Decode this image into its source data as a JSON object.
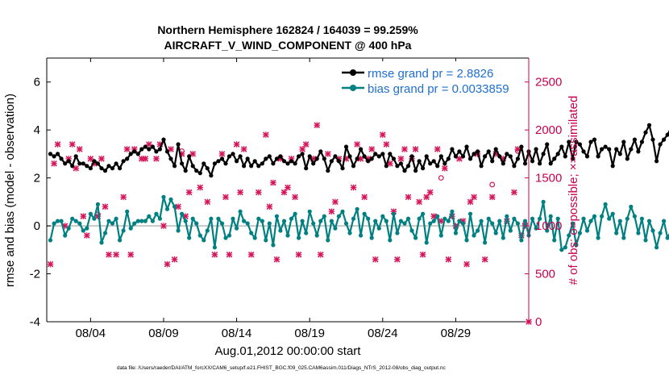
{
  "chart_data": {
    "type": "line",
    "title": "Northern Hemisphere 162824 / 164039 = 99.259%",
    "subtitle": "AIRCRAFT_V_WIND_COMPONENT @ 400 hPa",
    "xlabel": "Aug.01,2012 00:00:00 start",
    "ylabel": "rmse and bias (model - observation)",
    "y2label": "# of obs: o=possible; ×=assimilated",
    "footnote": "data file: /Users/raeder/DAI/ATM_forcXX/CAM6_setup/f.e21.FHIST_BGC.f09_025.CAM6assim.011/Diags_NTrS_2012-08/obs_diag_output.nc",
    "xlim": [
      0,
      33
    ],
    "ylim": [
      -4,
      7
    ],
    "y2lim": [
      0,
      2750
    ],
    "x_ticks": [
      {
        "value": 3,
        "label": "08/04"
      },
      {
        "value": 8,
        "label": "08/09"
      },
      {
        "value": 13,
        "label": "08/14"
      },
      {
        "value": 18,
        "label": "08/19"
      },
      {
        "value": 23,
        "label": "08/24"
      },
      {
        "value": 28,
        "label": "08/29"
      }
    ],
    "y_ticks": [
      {
        "value": -4,
        "label": "-4"
      },
      {
        "value": -2,
        "label": "-2"
      },
      {
        "value": 0,
        "label": "0"
      },
      {
        "value": 2,
        "label": "2"
      },
      {
        "value": 4,
        "label": "4"
      },
      {
        "value": 6,
        "label": "6"
      }
    ],
    "y2_ticks": [
      {
        "value": 0,
        "label": "0"
      },
      {
        "value": 500,
        "label": "500"
      },
      {
        "value": 1000,
        "label": "1000"
      },
      {
        "value": 1500,
        "label": "1500"
      },
      {
        "value": 2000,
        "label": "2000"
      },
      {
        "value": 2500,
        "label": "2500"
      }
    ],
    "x_start": 0.25,
    "x_step": 0.25,
    "series": [
      {
        "name": "rmse grand pr = 2.8826",
        "color": "#000000",
        "values": [
          3.0,
          2.9,
          3.0,
          2.8,
          2.6,
          2.7,
          2.5,
          2.9,
          2.6,
          2.6,
          2.5,
          2.4,
          2.7,
          2.6,
          2.4,
          2.3,
          2.5,
          2.4,
          2.6,
          2.4,
          2.7,
          2.8,
          3.0,
          3.1,
          3.0,
          3.2,
          3.3,
          3.2,
          3.3,
          3.1,
          3.2,
          3.6,
          3.1,
          2.8,
          2.5,
          3.4,
          2.6,
          2.3,
          2.9,
          2.5,
          2.3,
          2.2,
          2.6,
          2.4,
          2.1,
          2.6,
          2.7,
          2.8,
          2.6,
          2.9,
          3.0,
          2.7,
          2.9,
          2.5,
          2.8,
          2.5,
          2.7,
          2.5,
          2.6,
          2.8,
          2.9,
          2.6,
          2.8,
          2.9,
          2.7,
          2.6,
          2.7,
          2.6,
          2.9,
          3.0,
          2.4,
          2.9,
          2.6,
          2.8,
          3.1,
          2.8,
          2.3,
          2.7,
          2.9,
          2.7,
          2.4,
          3.3,
          2.9,
          2.5,
          2.8,
          3.2,
          2.9,
          2.7,
          2.8,
          3.0,
          2.9,
          3.0,
          2.5,
          3.0,
          2.8,
          2.5,
          2.6,
          2.3,
          2.5,
          2.9,
          2.3,
          2.7,
          2.4,
          2.9,
          2.6,
          2.7,
          2.5,
          2.9,
          2.6,
          2.8,
          3.2,
          2.9,
          3.1,
          2.9,
          3.3,
          2.8,
          3.0,
          3.1,
          2.5,
          2.9,
          3.1,
          2.7,
          3.2,
          2.9,
          2.6,
          3.0,
          2.9,
          2.5,
          2.8,
          3.3,
          2.6,
          3.1,
          2.7,
          3.2,
          2.6,
          3.0,
          3.4,
          2.6,
          2.8,
          3.0,
          3.3,
          2.9,
          3.5,
          2.8,
          3.5,
          3.4,
          3.1,
          2.9,
          3.5,
          3.6,
          2.9,
          3.2,
          3.3,
          3.2,
          2.5,
          3.2,
          3.0,
          3.5,
          2.8,
          3.2,
          3.6,
          3.1,
          3.5,
          3.9,
          4.2,
          3.6,
          2.7,
          3.4,
          3.6,
          3.8,
          4.1,
          4.4
        ]
      },
      {
        "name": "bias grand pr = 0.0033859",
        "color": "#008080",
        "values": [
          -0.6,
          0.1,
          0.2,
          0.2,
          -0.4,
          -0.1,
          0.3,
          0.2,
          0.1,
          -0.2,
          -0.1,
          0.5,
          0.3,
          0.9,
          -0.7,
          -0.3,
          0.2,
          0.1,
          0.3,
          -0.6,
          -0.2,
          0.6,
          -0.1,
          0.1,
          0.2,
          0.2,
          0.2,
          0.4,
          0.2,
          0.5,
          0.3,
          1.2,
          0.7,
          1.1,
          0.8,
          -0.2,
          0.5,
          0.2,
          -0.5,
          0.3,
          0.1,
          -0.4,
          -0.6,
          -0.2,
          0.3,
          -0.9,
          0.3,
          0.1,
          -0.5,
          -0.4,
          0.3,
          -0.1,
          0.6,
          0.2,
          0.1,
          -0.3,
          -0.5,
          0.3,
          0.2,
          -0.6,
          0.1,
          -0.8,
          0.4,
          -0.2,
          0.2,
          -0.4,
          0.3,
          0.5,
          -0.5,
          0.2,
          -0.3,
          0.6,
          0.1,
          -0.4,
          0.2,
          0.4,
          -0.6,
          0.2,
          -0.1,
          0.4,
          0.6,
          0.1,
          -0.3,
          0.3,
          0.7,
          -0.4,
          0.5,
          0.3,
          -0.5,
          0.2,
          -0.1,
          0.4,
          0.2,
          -0.6,
          0.5,
          -0.3,
          0.2,
          0.1,
          0.3,
          -0.2,
          -0.5,
          0.3,
          0.5,
          -0.7,
          0.1,
          0.2,
          0.4,
          -0.4,
          0.3,
          0.2,
          0.6,
          -0.3,
          0.2,
          0.1,
          -0.6,
          0.5,
          -0.4,
          -0.2,
          0.2,
          -0.7,
          0.3,
          0.1,
          -0.3,
          0.2,
          -0.5,
          0.4,
          -0.2,
          0.3,
          0.1,
          -0.6,
          0.2,
          -0.4,
          0.3,
          -0.1,
          0.3,
          1.0,
          -0.2,
          0.4,
          -0.6,
          0.3,
          -1.0,
          -0.9,
          -0.4,
          0.1,
          -0.8,
          -0.3,
          0.3,
          -0.2,
          0.2,
          0.4,
          -0.5,
          0.4,
          0.9,
          0.3,
          0.5,
          -0.3,
          0.2,
          -0.5,
          0.3,
          0.8,
          0.4,
          -0.3,
          0.3,
          -0.6,
          0.2,
          -0.2,
          -0.9,
          -0.3,
          0.2,
          -0.5,
          -0.2,
          0.3,
          0.1
        ]
      }
    ],
    "obs_assimilated": [
      {
        "x": 0.25,
        "y": 600
      },
      {
        "x": 0.5,
        "y": 1650
      },
      {
        "x": 0.75,
        "y": 1850
      },
      {
        "x": 1.25,
        "y": 1000
      },
      {
        "x": 1.5,
        "y": 1700
      },
      {
        "x": 1.75,
        "y": 1850
      },
      {
        "x": 2.0,
        "y": 1600
      },
      {
        "x": 2.25,
        "y": 1800
      },
      {
        "x": 2.5,
        "y": 1100
      },
      {
        "x": 2.75,
        "y": 900
      },
      {
        "x": 3.0,
        "y": 1700
      },
      {
        "x": 3.25,
        "y": 1650
      },
      {
        "x": 3.5,
        "y": 1100
      },
      {
        "x": 3.75,
        "y": 1700
      },
      {
        "x": 4.0,
        "y": 1200
      },
      {
        "x": 4.25,
        "y": 700
      },
      {
        "x": 4.75,
        "y": 700
      },
      {
        "x": 5.25,
        "y": 1300
      },
      {
        "x": 5.5,
        "y": 1800
      },
      {
        "x": 5.75,
        "y": 700
      },
      {
        "x": 6.0,
        "y": 1800
      },
      {
        "x": 6.5,
        "y": 1700
      },
      {
        "x": 6.75,
        "y": 1700
      },
      {
        "x": 7.0,
        "y": 1850
      },
      {
        "x": 7.5,
        "y": 1700
      },
      {
        "x": 7.75,
        "y": 1850
      },
      {
        "x": 8.0,
        "y": 1000
      },
      {
        "x": 8.25,
        "y": 600
      },
      {
        "x": 8.5,
        "y": 1800
      },
      {
        "x": 8.75,
        "y": 650
      },
      {
        "x": 9.0,
        "y": 1200
      },
      {
        "x": 9.25,
        "y": 1750
      },
      {
        "x": 9.5,
        "y": 1100
      },
      {
        "x": 9.75,
        "y": 1350
      },
      {
        "x": 10.0,
        "y": 1750
      },
      {
        "x": 10.5,
        "y": 1400
      },
      {
        "x": 11.0,
        "y": 1250
      },
      {
        "x": 11.5,
        "y": 700
      },
      {
        "x": 12.0,
        "y": 1750
      },
      {
        "x": 12.25,
        "y": 1300
      },
      {
        "x": 12.5,
        "y": 700
      },
      {
        "x": 13.0,
        "y": 1850
      },
      {
        "x": 13.25,
        "y": 1350
      },
      {
        "x": 13.5,
        "y": 1800
      },
      {
        "x": 14.0,
        "y": 700
      },
      {
        "x": 14.5,
        "y": 1350
      },
      {
        "x": 15.0,
        "y": 1950
      },
      {
        "x": 15.25,
        "y": 1200
      },
      {
        "x": 15.5,
        "y": 1450
      },
      {
        "x": 15.75,
        "y": 650
      },
      {
        "x": 16.0,
        "y": 1700
      },
      {
        "x": 16.25,
        "y": 1350
      },
      {
        "x": 16.5,
        "y": 1400
      },
      {
        "x": 16.75,
        "y": 1700
      },
      {
        "x": 17.0,
        "y": 1300
      },
      {
        "x": 17.25,
        "y": 700
      },
      {
        "x": 17.5,
        "y": 1800
      },
      {
        "x": 17.75,
        "y": 1850
      },
      {
        "x": 18.25,
        "y": 1700
      },
      {
        "x": 18.5,
        "y": 2050
      },
      {
        "x": 18.75,
        "y": 700
      },
      {
        "x": 19.25,
        "y": 1750
      },
      {
        "x": 19.5,
        "y": 1150
      },
      {
        "x": 19.75,
        "y": 1250
      },
      {
        "x": 20.0,
        "y": 1700
      },
      {
        "x": 20.5,
        "y": 1700
      },
      {
        "x": 21.0,
        "y": 1400
      },
      {
        "x": 21.25,
        "y": 1850
      },
      {
        "x": 21.5,
        "y": 1700
      },
      {
        "x": 21.75,
        "y": 1300
      },
      {
        "x": 22.0,
        "y": 1700
      },
      {
        "x": 22.25,
        "y": 1800
      },
      {
        "x": 22.5,
        "y": 650
      },
      {
        "x": 23.0,
        "y": 1950
      },
      {
        "x": 23.25,
        "y": 1850
      },
      {
        "x": 23.5,
        "y": 1650
      },
      {
        "x": 23.75,
        "y": 1150
      },
      {
        "x": 24.0,
        "y": 650
      },
      {
        "x": 24.25,
        "y": 1700
      },
      {
        "x": 24.5,
        "y": 1800
      },
      {
        "x": 24.75,
        "y": 1300
      },
      {
        "x": 25.0,
        "y": 1700
      },
      {
        "x": 25.25,
        "y": 1800
      },
      {
        "x": 25.5,
        "y": 1250
      },
      {
        "x": 25.75,
        "y": 700
      },
      {
        "x": 26.0,
        "y": 1300
      },
      {
        "x": 26.25,
        "y": 1350
      },
      {
        "x": 26.5,
        "y": 1100
      },
      {
        "x": 26.75,
        "y": 1800
      },
      {
        "x": 27.0,
        "y": 1050
      },
      {
        "x": 27.25,
        "y": 1600
      },
      {
        "x": 27.5,
        "y": 650
      },
      {
        "x": 27.75,
        "y": 1100
      },
      {
        "x": 28.0,
        "y": 1000
      },
      {
        "x": 28.25,
        "y": 1700
      },
      {
        "x": 28.5,
        "y": 1050
      },
      {
        "x": 28.75,
        "y": 600
      },
      {
        "x": 29.0,
        "y": 1250
      },
      {
        "x": 29.25,
        "y": 1300
      },
      {
        "x": 29.5,
        "y": 1750
      },
      {
        "x": 30.0,
        "y": 650
      },
      {
        "x": 30.5,
        "y": 1300
      },
      {
        "x": 30.75,
        "y": 1750
      },
      {
        "x": 31.25,
        "y": 1700
      },
      {
        "x": 31.5,
        "y": 1050
      },
      {
        "x": 32.0,
        "y": 1350
      },
      {
        "x": 32.25,
        "y": 1800
      },
      {
        "x": 32.5,
        "y": 900
      },
      {
        "x": 32.75,
        "y": 1000
      },
      {
        "x": 33.0,
        "y": 0
      }
    ],
    "obs_possible": [
      {
        "x": 3.5,
        "y": 1120
      },
      {
        "x": 9.25,
        "y": 1780
      },
      {
        "x": 27.0,
        "y": 1500
      },
      {
        "x": 30.5,
        "y": 1430
      },
      {
        "x": 32.25,
        "y": 1780
      },
      {
        "x": 32.75,
        "y": 1020
      }
    ],
    "obs_color": "#d6155a",
    "colors": {
      "axis": "#000000",
      "right_axis": "#c8004f",
      "zero_line": "#b8b8b8",
      "legend_text": "#1f6fd1"
    }
  }
}
